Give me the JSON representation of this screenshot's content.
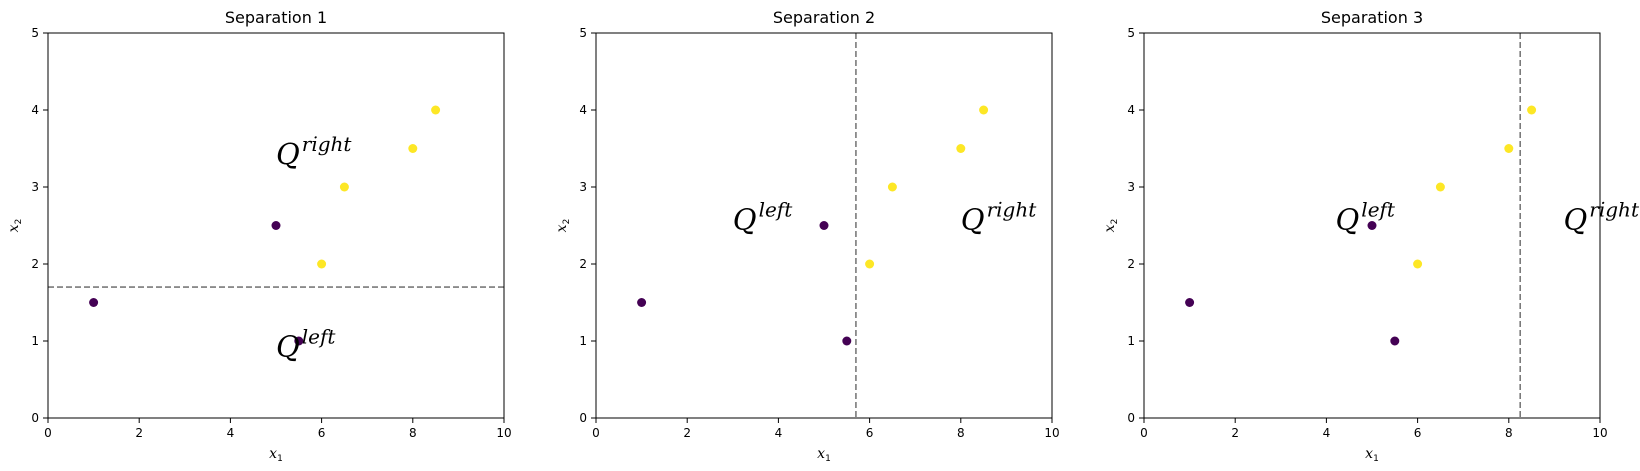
{
  "colors": {
    "class0": "#440154",
    "class1": "#fde725",
    "separator": "#7a7a7a"
  },
  "chart_data": [
    {
      "type": "scatter",
      "title": "Separation 1",
      "xlabel": "x1",
      "ylabel": "x2",
      "xlim": [
        0,
        10
      ],
      "ylim": [
        0,
        5
      ],
      "xticks": [
        0,
        2,
        4,
        6,
        8,
        10
      ],
      "yticks": [
        0,
        1,
        2,
        3,
        4,
        5
      ],
      "grid": false,
      "points": [
        {
          "x": 1,
          "y": 1.5,
          "class": 0
        },
        {
          "x": 5.5,
          "y": 1,
          "class": 0
        },
        {
          "x": 5,
          "y": 2.5,
          "class": 0
        },
        {
          "x": 6,
          "y": 2,
          "class": 1
        },
        {
          "x": 6.5,
          "y": 3,
          "class": 1
        },
        {
          "x": 8,
          "y": 3.5,
          "class": 1
        },
        {
          "x": 8.5,
          "y": 4,
          "class": 1
        }
      ],
      "separator": {
        "orientation": "horizontal",
        "value": 1.7,
        "style": "dashed"
      },
      "annotations": [
        {
          "base": "Q",
          "sup": "right",
          "x": 5,
          "y": 3.3
        },
        {
          "base": "Q",
          "sup": "left",
          "x": 5,
          "y": 0.8
        }
      ]
    },
    {
      "type": "scatter",
      "title": "Separation 2",
      "xlabel": "x1",
      "ylabel": "x2",
      "xlim": [
        0,
        10
      ],
      "ylim": [
        0,
        5
      ],
      "xticks": [
        0,
        2,
        4,
        6,
        8,
        10
      ],
      "yticks": [
        0,
        1,
        2,
        3,
        4,
        5
      ],
      "grid": false,
      "points": [
        {
          "x": 1,
          "y": 1.5,
          "class": 0
        },
        {
          "x": 5.5,
          "y": 1,
          "class": 0
        },
        {
          "x": 5,
          "y": 2.5,
          "class": 0
        },
        {
          "x": 6,
          "y": 2,
          "class": 1
        },
        {
          "x": 6.5,
          "y": 3,
          "class": 1
        },
        {
          "x": 8,
          "y": 3.5,
          "class": 1
        },
        {
          "x": 8.5,
          "y": 4,
          "class": 1
        }
      ],
      "separator": {
        "orientation": "vertical",
        "value": 5.7,
        "style": "dashed"
      },
      "annotations": [
        {
          "base": "Q",
          "sup": "left",
          "x": 3,
          "y": 2.45
        },
        {
          "base": "Q",
          "sup": "right",
          "x": 8,
          "y": 2.45
        }
      ]
    },
    {
      "type": "scatter",
      "title": "Separation 3",
      "xlabel": "x1",
      "ylabel": "x2",
      "xlim": [
        0,
        10
      ],
      "ylim": [
        0,
        5
      ],
      "xticks": [
        0,
        2,
        4,
        6,
        8,
        10
      ],
      "yticks": [
        0,
        1,
        2,
        3,
        4,
        5
      ],
      "grid": false,
      "points": [
        {
          "x": 1,
          "y": 1.5,
          "class": 0
        },
        {
          "x": 5.5,
          "y": 1,
          "class": 0
        },
        {
          "x": 5,
          "y": 2.5,
          "class": 0
        },
        {
          "x": 6,
          "y": 2,
          "class": 1
        },
        {
          "x": 6.5,
          "y": 3,
          "class": 1
        },
        {
          "x": 8,
          "y": 3.5,
          "class": 1
        },
        {
          "x": 8.5,
          "y": 4,
          "class": 1
        }
      ],
      "separator": {
        "orientation": "vertical",
        "value": 8.25,
        "style": "dashed"
      },
      "annotations": [
        {
          "base": "Q",
          "sup": "left",
          "x": 4.2,
          "y": 2.45
        },
        {
          "base": "Q",
          "sup": "right",
          "x": 9.2,
          "y": 2.45
        }
      ]
    }
  ]
}
